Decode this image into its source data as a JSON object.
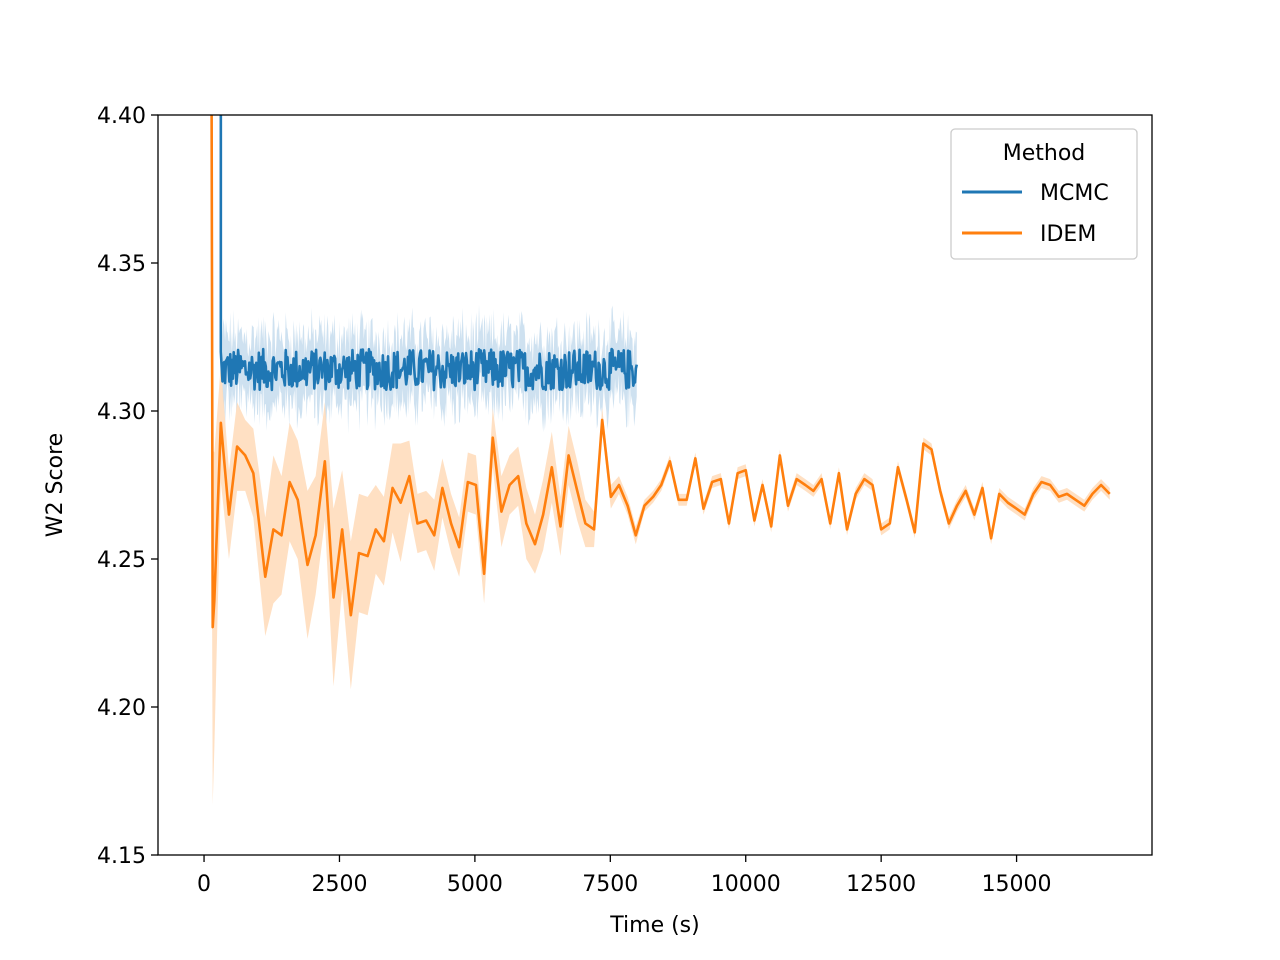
{
  "chart_data": {
    "type": "line",
    "xlabel": "Time (s)",
    "ylabel": "W2 Score",
    "xlim": [
      -850,
      17500
    ],
    "ylim": [
      4.15,
      4.4
    ],
    "x_ticks": [
      0,
      2500,
      5000,
      7500,
      10000,
      12500,
      15000
    ],
    "y_ticks": [
      4.15,
      4.2,
      4.25,
      4.3,
      4.35,
      4.4
    ],
    "y_tick_labels": [
      "4.15",
      "4.20",
      "4.25",
      "4.30",
      "4.35",
      "4.40"
    ],
    "grid": false,
    "legend": {
      "title": "Method",
      "placement": "top-right"
    },
    "series": [
      {
        "name": "MCMC",
        "color": "#1f77b4",
        "band_color": "#aecde6",
        "start": {
          "x": [
            310,
            310,
            340
          ],
          "y": [
            4.4,
            4.32,
            4.31
          ]
        },
        "x_range": [
          340,
          8000
        ],
        "mean_level": 4.314,
        "mean_jitter": 0.007,
        "band_half_width": 0.011,
        "step": 16
      },
      {
        "name": "IDEM",
        "color": "#ff7f0e",
        "band_color": "#ffd8b4",
        "x": [
          140,
          160,
          190,
          310,
          460,
          610,
          760,
          910,
          1130,
          1280,
          1430,
          1580,
          1730,
          1910,
          2060,
          2230,
          2390,
          2550,
          2710,
          2860,
          3020,
          3170,
          3320,
          3480,
          3630,
          3790,
          3940,
          4100,
          4250,
          4400,
          4560,
          4710,
          4870,
          5020,
          5170,
          5330,
          5490,
          5640,
          5800,
          5950,
          6110,
          6260,
          6420,
          6580,
          6730,
          6890,
          7040,
          7200,
          7350,
          7510,
          7660,
          7820,
          7970,
          8130,
          8290,
          8440,
          8600,
          8760,
          8910,
          9070,
          9220,
          9380,
          9540,
          9690,
          9850,
          10000,
          10160,
          10310,
          10470,
          10630,
          10780,
          10940,
          11100,
          11250,
          11400,
          11560,
          11720,
          11870,
          12030,
          12190,
          12340,
          12500,
          12660,
          12810,
          12970,
          13120,
          13280,
          13430,
          13590,
          13750,
          13900,
          14060,
          14220,
          14370,
          14530,
          14680,
          14840,
          15000,
          15150,
          15310,
          15460,
          15620,
          15780,
          15930,
          16090,
          16250,
          16400,
          16560,
          16720
        ],
        "y": [
          4.4,
          4.227,
          4.236,
          4.296,
          4.265,
          4.288,
          4.285,
          4.279,
          4.244,
          4.26,
          4.258,
          4.276,
          4.27,
          4.248,
          4.258,
          4.283,
          4.237,
          4.26,
          4.231,
          4.252,
          4.251,
          4.26,
          4.256,
          4.274,
          4.269,
          4.278,
          4.262,
          4.263,
          4.258,
          4.274,
          4.262,
          4.254,
          4.276,
          4.275,
          4.245,
          4.291,
          4.266,
          4.275,
          4.278,
          4.262,
          4.255,
          4.265,
          4.281,
          4.261,
          4.285,
          4.273,
          4.262,
          4.26,
          4.297,
          4.271,
          4.275,
          4.268,
          4.258,
          4.268,
          4.271,
          4.275,
          4.283,
          4.27,
          4.27,
          4.284,
          4.267,
          4.276,
          4.277,
          4.262,
          4.279,
          4.28,
          4.263,
          4.275,
          4.261,
          4.285,
          4.268,
          4.277,
          4.275,
          4.273,
          4.277,
          4.262,
          4.279,
          4.26,
          4.272,
          4.277,
          4.275,
          4.26,
          4.262,
          4.281,
          4.27,
          4.259,
          4.289,
          4.287,
          4.273,
          4.262,
          4.268,
          4.273,
          4.265,
          4.274,
          4.257,
          4.272,
          4.269,
          4.267,
          4.265,
          4.272,
          4.276,
          4.275,
          4.271,
          4.272,
          4.27,
          4.268,
          4.272,
          4.275,
          4.272
        ],
        "band_half_width": [
          0.12,
          0.06,
          0.05,
          0.02,
          0.015,
          0.015,
          0.012,
          0.015,
          0.02,
          0.025,
          0.02,
          0.02,
          0.02,
          0.025,
          0.02,
          0.02,
          0.03,
          0.02,
          0.025,
          0.02,
          0.02,
          0.015,
          0.015,
          0.015,
          0.02,
          0.012,
          0.01,
          0.01,
          0.012,
          0.01,
          0.01,
          0.01,
          0.01,
          0.01,
          0.01,
          0.01,
          0.012,
          0.01,
          0.01,
          0.012,
          0.01,
          0.012,
          0.012,
          0.01,
          0.01,
          0.01,
          0.008,
          0.006,
          0.004,
          0.004,
          0.003,
          0.003,
          0.003,
          0.002,
          0.002,
          0.002,
          0.002,
          0.002,
          0.002,
          0.002,
          0.002,
          0.002,
          0.002,
          0.002,
          0.002,
          0.002,
          0.002,
          0.002,
          0.002,
          0.002,
          0.002,
          0.002,
          0.002,
          0.002,
          0.002,
          0.002,
          0.002,
          0.002,
          0.002,
          0.002,
          0.002,
          0.002,
          0.002,
          0.002,
          0.002,
          0.002,
          0.002,
          0.002,
          0.002,
          0.002,
          0.002,
          0.002,
          0.002,
          0.002,
          0.002,
          0.002,
          0.002,
          0.002,
          0.002,
          0.002,
          0.002,
          0.002,
          0.002,
          0.002,
          0.002,
          0.002,
          0.002,
          0.002,
          0.002
        ]
      }
    ]
  }
}
